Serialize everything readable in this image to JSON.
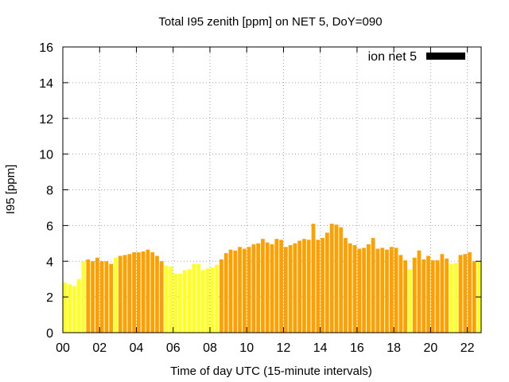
{
  "chart_data": {
    "type": "bar",
    "title": "Total I95 zenith [ppm] on NET 5, DoY=090",
    "xlabel": "Time of day UTC (15-minute intervals)",
    "ylabel": "I95 [ppm]",
    "xlim": [
      0,
      22.75
    ],
    "ylim": [
      0,
      16
    ],
    "xticks": [
      0,
      2,
      4,
      6,
      8,
      10,
      12,
      14,
      16,
      18,
      20,
      22
    ],
    "xtick_labels": [
      "00",
      "02",
      "04",
      "06",
      "08",
      "10",
      "12",
      "14",
      "16",
      "18",
      "20",
      "22"
    ],
    "yticks": [
      0,
      2,
      4,
      6,
      8,
      10,
      12,
      14,
      16
    ],
    "ytick_labels": [
      "0",
      "2",
      "4",
      "6",
      "8",
      "10",
      "12",
      "14",
      "16"
    ],
    "grid": true,
    "legend": {
      "label": "ion net 5",
      "position": "top-right",
      "color": "#000000"
    },
    "bar_colors": {
      "Y": "#ffff22",
      "O": "#ff9f00"
    },
    "series": [
      {
        "name": "ion net 5",
        "x": [
          0.125,
          0.375,
          0.625,
          0.875,
          1.125,
          1.375,
          1.625,
          1.875,
          2.125,
          2.375,
          2.625,
          2.875,
          3.125,
          3.375,
          3.625,
          3.875,
          4.125,
          4.375,
          4.625,
          4.875,
          5.125,
          5.375,
          5.625,
          5.875,
          6.125,
          6.375,
          6.625,
          6.875,
          7.125,
          7.375,
          7.625,
          7.875,
          8.125,
          8.375,
          8.625,
          8.875,
          9.125,
          9.375,
          9.625,
          9.875,
          10.125,
          10.375,
          10.625,
          10.875,
          11.125,
          11.375,
          11.625,
          11.875,
          12.125,
          12.375,
          12.625,
          12.875,
          13.125,
          13.375,
          13.625,
          13.875,
          14.125,
          14.375,
          14.625,
          14.875,
          15.125,
          15.375,
          15.625,
          15.875,
          16.125,
          16.375,
          16.625,
          16.875,
          17.125,
          17.375,
          17.625,
          17.875,
          18.125,
          18.375,
          18.625,
          18.875,
          19.125,
          19.375,
          19.625,
          19.875,
          20.125,
          20.375,
          20.625,
          20.875,
          21.125,
          21.375,
          21.625,
          21.875,
          22.125,
          22.375,
          22.625
        ],
        "values": [
          2.8,
          2.7,
          2.6,
          3.0,
          4.0,
          4.1,
          4.0,
          4.2,
          4.0,
          4.0,
          3.85,
          4.2,
          4.3,
          4.35,
          4.4,
          4.5,
          4.5,
          4.55,
          4.65,
          4.5,
          4.3,
          4.0,
          3.75,
          3.7,
          3.3,
          3.3,
          3.5,
          3.55,
          3.85,
          3.85,
          3.5,
          3.6,
          3.65,
          3.8,
          4.1,
          4.45,
          4.65,
          4.6,
          4.8,
          4.7,
          4.8,
          4.95,
          5.0,
          5.25,
          5.05,
          4.95,
          5.25,
          5.2,
          4.8,
          4.9,
          5.0,
          5.15,
          5.25,
          5.2,
          6.1,
          5.2,
          5.3,
          5.6,
          6.1,
          6.05,
          5.9,
          5.3,
          5.0,
          4.9,
          4.7,
          4.75,
          4.95,
          5.3,
          4.7,
          4.75,
          4.65,
          4.8,
          4.75,
          4.35,
          4.05,
          3.55,
          4.2,
          4.6,
          4.1,
          4.3,
          4.05,
          4.05,
          4.4,
          4.15,
          3.85,
          3.9,
          4.35,
          4.4,
          4.5,
          4.0,
          4.0
        ],
        "colors": [
          "Y",
          "Y",
          "Y",
          "Y",
          "Y",
          "O",
          "O",
          "O",
          "O",
          "O",
          "O",
          "Y",
          "O",
          "O",
          "O",
          "O",
          "O",
          "O",
          "O",
          "O",
          "O",
          "O",
          "Y",
          "Y",
          "Y",
          "Y",
          "Y",
          "Y",
          "Y",
          "Y",
          "Y",
          "Y",
          "Y",
          "Y",
          "O",
          "O",
          "O",
          "O",
          "O",
          "O",
          "O",
          "O",
          "O",
          "O",
          "O",
          "O",
          "O",
          "O",
          "O",
          "O",
          "O",
          "O",
          "O",
          "O",
          "O",
          "O",
          "O",
          "O",
          "O",
          "O",
          "O",
          "O",
          "O",
          "O",
          "O",
          "O",
          "O",
          "O",
          "O",
          "O",
          "O",
          "O",
          "O",
          "O",
          "O",
          "Y",
          "O",
          "O",
          "O",
          "O",
          "O",
          "O",
          "O",
          "O",
          "Y",
          "Y",
          "O",
          "O",
          "O",
          "O",
          "Y"
        ]
      }
    ]
  }
}
